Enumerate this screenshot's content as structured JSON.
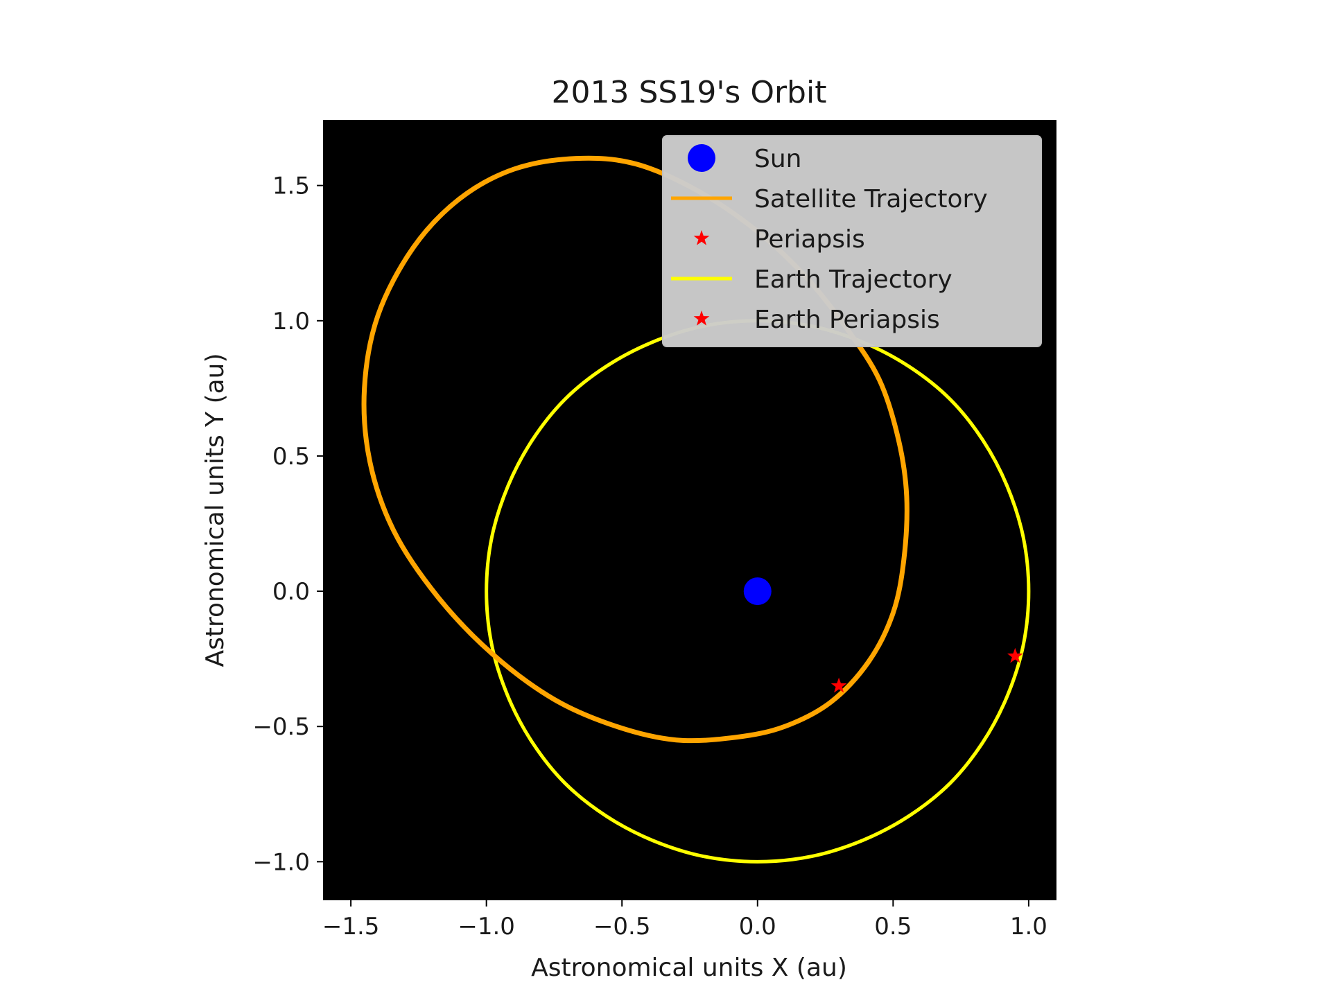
{
  "chart_data": {
    "type": "line",
    "title": "2013 SS19's Orbit",
    "xlabel": "Astronomical units X (au)",
    "ylabel": "Astronomical units Y (au)",
    "xlim": [
      -1.6,
      1.1
    ],
    "ylim": [
      -1.14,
      1.74
    ],
    "xticks": [
      -1.5,
      -1.0,
      -0.5,
      0.0,
      0.5,
      1.0
    ],
    "xtick_labels": [
      "−1.5",
      "−1.0",
      "−0.5",
      "0.0",
      "0.5",
      "1.0"
    ],
    "yticks": [
      -1.0,
      -0.5,
      0.0,
      0.5,
      1.0,
      1.5
    ],
    "ytick_labels": [
      "−1.0",
      "−0.5",
      "0.0",
      "0.5",
      "1.0",
      "1.5"
    ],
    "grid": false,
    "legend_position": "top-right",
    "background": "#000000",
    "series": [
      {
        "name": "Sun",
        "kind": "point",
        "marker": "circle",
        "color": "#0000ff",
        "points": [
          [
            0.0,
            0.0
          ]
        ]
      },
      {
        "name": "Satellite Trajectory",
        "kind": "line",
        "color": "#ffa500",
        "points": [
          [
            -0.67,
            1.6
          ],
          [
            -0.45,
            1.58
          ],
          [
            -0.22,
            1.48
          ],
          [
            0.0,
            1.33
          ],
          [
            0.18,
            1.16
          ],
          [
            0.33,
            0.97
          ],
          [
            0.45,
            0.78
          ],
          [
            0.52,
            0.56
          ],
          [
            0.55,
            0.35
          ],
          [
            0.54,
            0.12
          ],
          [
            0.5,
            -0.08
          ],
          [
            0.41,
            -0.26
          ],
          [
            0.27,
            -0.41
          ],
          [
            0.1,
            -0.5
          ],
          [
            -0.08,
            -0.54
          ],
          [
            -0.3,
            -0.55
          ],
          [
            -0.52,
            -0.5
          ],
          [
            -0.75,
            -0.4
          ],
          [
            -0.98,
            -0.23
          ],
          [
            -1.18,
            -0.02
          ],
          [
            -1.34,
            0.22
          ],
          [
            -1.43,
            0.48
          ],
          [
            -1.45,
            0.75
          ],
          [
            -1.4,
            1.02
          ],
          [
            -1.27,
            1.27
          ],
          [
            -1.1,
            1.45
          ],
          [
            -0.9,
            1.56
          ],
          [
            -0.67,
            1.6
          ]
        ]
      },
      {
        "name": "Periapsis",
        "kind": "point",
        "marker": "star",
        "color": "#ff0000",
        "points": [
          [
            0.3,
            -0.35
          ]
        ]
      },
      {
        "name": "Earth Trajectory",
        "kind": "line",
        "color": "#ffff00",
        "points": [
          [
            1.0,
            0.0
          ],
          [
            0.98,
            0.2
          ],
          [
            0.92,
            0.39
          ],
          [
            0.83,
            0.56
          ],
          [
            0.71,
            0.71
          ],
          [
            0.56,
            0.83
          ],
          [
            0.39,
            0.92
          ],
          [
            0.2,
            0.98
          ],
          [
            0.0,
            1.0
          ],
          [
            -0.2,
            0.98
          ],
          [
            -0.39,
            0.92
          ],
          [
            -0.56,
            0.83
          ],
          [
            -0.71,
            0.71
          ],
          [
            -0.83,
            0.56
          ],
          [
            -0.92,
            0.39
          ],
          [
            -0.98,
            0.2
          ],
          [
            -1.0,
            0.0
          ],
          [
            -0.98,
            -0.2
          ],
          [
            -0.92,
            -0.39
          ],
          [
            -0.83,
            -0.56
          ],
          [
            -0.71,
            -0.71
          ],
          [
            -0.56,
            -0.83
          ],
          [
            -0.39,
            -0.92
          ],
          [
            -0.2,
            -0.98
          ],
          [
            0.0,
            -1.0
          ],
          [
            0.2,
            -0.98
          ],
          [
            0.39,
            -0.92
          ],
          [
            0.56,
            -0.83
          ],
          [
            0.71,
            -0.71
          ],
          [
            0.83,
            -0.56
          ],
          [
            0.92,
            -0.39
          ],
          [
            0.98,
            -0.2
          ],
          [
            1.0,
            0.0
          ]
        ]
      },
      {
        "name": "Earth Periapsis",
        "kind": "point",
        "marker": "star",
        "color": "#ff0000",
        "points": [
          [
            0.95,
            -0.24
          ]
        ]
      }
    ]
  }
}
